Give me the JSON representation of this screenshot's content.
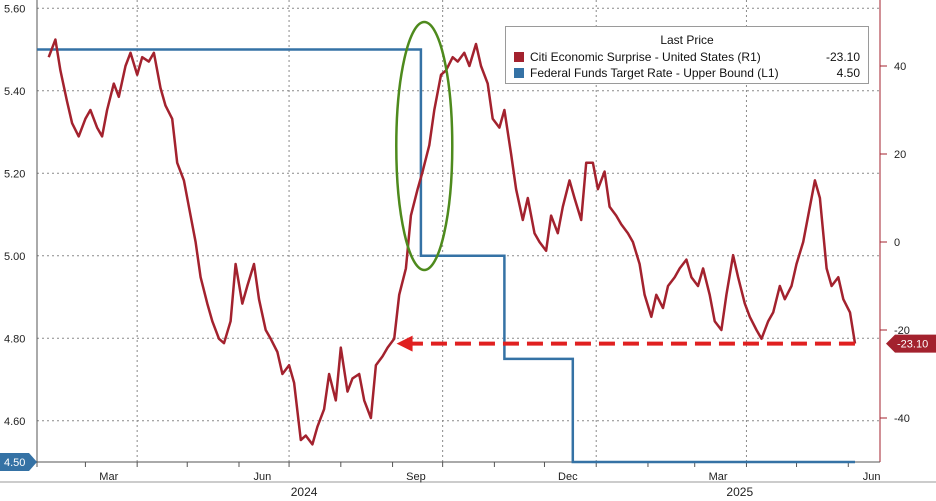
{
  "chart_data": {
    "type": "line",
    "x_axis": {
      "month_labels": [
        "Mar",
        "Jun",
        "Sep",
        "Dec",
        "Mar",
        "Jun"
      ],
      "year_labels": [
        "2024",
        "2025"
      ]
    },
    "left_axis": {
      "ylim": [
        4.5,
        5.62
      ],
      "ticks": [
        "5.60",
        "5.40",
        "5.20",
        "5.00",
        "4.80",
        "4.60"
      ],
      "tick_values": [
        5.6,
        5.4,
        5.2,
        5.0,
        4.8,
        4.6
      ]
    },
    "right_axis": {
      "ylim": [
        -50,
        55
      ],
      "ticks": [
        "40",
        "20",
        "0",
        "-20",
        "-40"
      ],
      "tick_values": [
        40,
        20,
        0,
        -20,
        -40
      ]
    },
    "legend": {
      "title": "Last Price",
      "placement": "top-right"
    },
    "series": [
      {
        "name": "Citi Economic Surprise - United States (R1)",
        "axis": "right",
        "color": "#a3222e",
        "last_value": "-23.10",
        "points": [
          [
            "2024-02-08",
            42
          ],
          [
            "2024-02-12",
            46
          ],
          [
            "2024-02-15",
            39
          ],
          [
            "2024-02-19",
            32
          ],
          [
            "2024-02-22",
            27
          ],
          [
            "2024-02-26",
            24
          ],
          [
            "2024-03-01",
            28
          ],
          [
            "2024-03-04",
            30
          ],
          [
            "2024-03-08",
            26
          ],
          [
            "2024-03-11",
            24
          ],
          [
            "2024-03-14",
            30
          ],
          [
            "2024-03-18",
            36
          ],
          [
            "2024-03-21",
            33
          ],
          [
            "2024-03-25",
            40
          ],
          [
            "2024-03-28",
            43
          ],
          [
            "2024-04-01",
            38
          ],
          [
            "2024-04-04",
            42
          ],
          [
            "2024-04-08",
            41
          ],
          [
            "2024-04-11",
            43
          ],
          [
            "2024-04-15",
            35
          ],
          [
            "2024-04-18",
            31
          ],
          [
            "2024-04-22",
            28
          ],
          [
            "2024-04-25",
            18
          ],
          [
            "2024-04-29",
            14
          ],
          [
            "2024-05-02",
            8
          ],
          [
            "2024-05-06",
            0
          ],
          [
            "2024-05-09",
            -8
          ],
          [
            "2024-05-13",
            -14
          ],
          [
            "2024-05-16",
            -18
          ],
          [
            "2024-05-20",
            -22
          ],
          [
            "2024-05-23",
            -23
          ],
          [
            "2024-05-27",
            -18
          ],
          [
            "2024-05-30",
            -5
          ],
          [
            "2024-06-03",
            -14
          ],
          [
            "2024-06-06",
            -10
          ],
          [
            "2024-06-10",
            -5
          ],
          [
            "2024-06-13",
            -13
          ],
          [
            "2024-06-17",
            -20
          ],
          [
            "2024-06-20",
            -22
          ],
          [
            "2024-06-24",
            -25
          ],
          [
            "2024-06-27",
            -30
          ],
          [
            "2024-07-01",
            -28
          ],
          [
            "2024-07-04",
            -32
          ],
          [
            "2024-07-08",
            -45
          ],
          [
            "2024-07-11",
            -44
          ],
          [
            "2024-07-15",
            -46
          ],
          [
            "2024-07-18",
            -42
          ],
          [
            "2024-07-22",
            -38
          ],
          [
            "2024-07-25",
            -30
          ],
          [
            "2024-07-29",
            -36
          ],
          [
            "2024-08-01",
            -24
          ],
          [
            "2024-08-05",
            -34
          ],
          [
            "2024-08-08",
            -31
          ],
          [
            "2024-08-12",
            -30
          ],
          [
            "2024-08-15",
            -36
          ],
          [
            "2024-08-19",
            -40
          ],
          [
            "2024-08-22",
            -28
          ],
          [
            "2024-08-26",
            -26
          ],
          [
            "2024-08-29",
            -24
          ],
          [
            "2024-09-02",
            -22
          ],
          [
            "2024-09-05",
            -12
          ],
          [
            "2024-09-09",
            -6
          ],
          [
            "2024-09-12",
            6
          ],
          [
            "2024-09-16",
            12
          ],
          [
            "2024-09-19",
            16
          ],
          [
            "2024-09-23",
            22
          ],
          [
            "2024-09-26",
            30
          ],
          [
            "2024-09-30",
            38
          ],
          [
            "2024-10-03",
            39
          ],
          [
            "2024-10-07",
            42
          ],
          [
            "2024-10-10",
            41
          ],
          [
            "2024-10-14",
            43
          ],
          [
            "2024-10-17",
            40
          ],
          [
            "2024-10-21",
            45
          ],
          [
            "2024-10-24",
            40
          ],
          [
            "2024-10-28",
            36
          ],
          [
            "2024-10-31",
            28
          ],
          [
            "2024-11-04",
            26
          ],
          [
            "2024-11-07",
            30
          ],
          [
            "2024-11-11",
            20
          ],
          [
            "2024-11-14",
            12
          ],
          [
            "2024-11-18",
            5
          ],
          [
            "2024-11-21",
            10
          ],
          [
            "2024-11-25",
            2
          ],
          [
            "2024-11-28",
            0
          ],
          [
            "2024-12-02",
            -2
          ],
          [
            "2024-12-05",
            6
          ],
          [
            "2024-12-09",
            2
          ],
          [
            "2024-12-12",
            8
          ],
          [
            "2024-12-16",
            14
          ],
          [
            "2024-12-19",
            10
          ],
          [
            "2024-12-23",
            5
          ],
          [
            "2024-12-26",
            18
          ],
          [
            "2024-12-30",
            18
          ],
          [
            "2025-01-02",
            12
          ],
          [
            "2025-01-06",
            16
          ],
          [
            "2025-01-09",
            8
          ],
          [
            "2025-01-13",
            6
          ],
          [
            "2025-01-16",
            4
          ],
          [
            "2025-01-20",
            2
          ],
          [
            "2025-01-23",
            0
          ],
          [
            "2025-01-27",
            -5
          ],
          [
            "2025-01-30",
            -12
          ],
          [
            "2025-02-03",
            -17
          ],
          [
            "2025-02-06",
            -12
          ],
          [
            "2025-02-10",
            -15
          ],
          [
            "2025-02-13",
            -10
          ],
          [
            "2025-02-17",
            -8
          ],
          [
            "2025-02-20",
            -6
          ],
          [
            "2025-02-24",
            -4
          ],
          [
            "2025-02-27",
            -8
          ],
          [
            "2025-03-03",
            -10
          ],
          [
            "2025-03-06",
            -6
          ],
          [
            "2025-03-10",
            -12
          ],
          [
            "2025-03-13",
            -18
          ],
          [
            "2025-03-17",
            -20
          ],
          [
            "2025-03-20",
            -12
          ],
          [
            "2025-03-24",
            -3
          ],
          [
            "2025-03-27",
            -8
          ],
          [
            "2025-03-31",
            -14
          ],
          [
            "2025-04-03",
            -17
          ],
          [
            "2025-04-07",
            -20
          ],
          [
            "2025-04-10",
            -22
          ],
          [
            "2025-04-14",
            -18
          ],
          [
            "2025-04-17",
            -16
          ],
          [
            "2025-04-21",
            -10
          ],
          [
            "2025-04-24",
            -13
          ],
          [
            "2025-04-28",
            -10
          ],
          [
            "2025-05-01",
            -5
          ],
          [
            "2025-05-05",
            0
          ],
          [
            "2025-05-08",
            6
          ],
          [
            "2025-05-12",
            14
          ],
          [
            "2025-05-15",
            10
          ],
          [
            "2025-05-19",
            -6
          ],
          [
            "2025-05-22",
            -10
          ],
          [
            "2025-05-26",
            -8
          ],
          [
            "2025-05-29",
            -13
          ],
          [
            "2025-06-02",
            -16
          ],
          [
            "2025-06-05",
            -23.1
          ]
        ]
      },
      {
        "name": "Federal Funds Target Rate - Upper Bound (L1)",
        "axis": "left",
        "color": "#3572a5",
        "last_value": "4.50",
        "points": [
          [
            "2024-02-01",
            5.5
          ],
          [
            "2024-09-18",
            5.5
          ],
          [
            "2024-09-18",
            5.0
          ],
          [
            "2024-11-07",
            5.0
          ],
          [
            "2024-11-07",
            4.75
          ],
          [
            "2024-12-18",
            4.75
          ],
          [
            "2024-12-18",
            4.5
          ],
          [
            "2025-06-05",
            4.5
          ]
        ]
      }
    ],
    "annotations": {
      "left_last_label": "4.50",
      "right_last_label": "-23.10",
      "ellipse_color": "#4e8a1d",
      "arrow_color": "#e02020"
    }
  }
}
